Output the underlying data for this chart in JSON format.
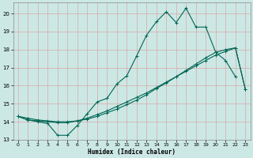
{
  "xlabel": "Humidex (Indice chaleur)",
  "bg_color": "#cce8e4",
  "grid_color": "#d8a8a8",
  "line_color": "#006655",
  "xlim": [
    -0.5,
    23.5
  ],
  "ylim": [
    13,
    20.6
  ],
  "yticks": [
    13,
    14,
    15,
    16,
    17,
    18,
    19,
    20
  ],
  "xticks": [
    0,
    1,
    2,
    3,
    4,
    5,
    6,
    7,
    8,
    9,
    10,
    11,
    12,
    13,
    14,
    15,
    16,
    17,
    18,
    19,
    20,
    21,
    22,
    23
  ],
  "line1_x": [
    0,
    1,
    2,
    3,
    4,
    5,
    6,
    7,
    8,
    9,
    10,
    11,
    12,
    13,
    14,
    15,
    16,
    17,
    18,
    19,
    20,
    21,
    22
  ],
  "line1_y": [
    14.3,
    14.1,
    14.0,
    13.9,
    13.25,
    13.25,
    13.8,
    14.45,
    15.1,
    15.3,
    16.1,
    16.55,
    17.65,
    18.8,
    19.55,
    20.1,
    19.5,
    20.3,
    19.25,
    19.25,
    17.85,
    17.4,
    16.5
  ],
  "line2_x": [
    0,
    1,
    2,
    3,
    4,
    5,
    6,
    7,
    8,
    9,
    10,
    11,
    12,
    13,
    14,
    15,
    16,
    17,
    18,
    19,
    20,
    21,
    22,
    23
  ],
  "line2_y": [
    14.3,
    14.1,
    14.05,
    14.0,
    13.95,
    13.95,
    14.05,
    14.2,
    14.4,
    14.6,
    14.85,
    15.1,
    15.35,
    15.6,
    15.9,
    16.2,
    16.5,
    16.8,
    17.1,
    17.4,
    17.7,
    17.9,
    18.1,
    15.8
  ],
  "line3_x": [
    0,
    1,
    2,
    3,
    4,
    5,
    6,
    7,
    8,
    9,
    10,
    11,
    12,
    13,
    14,
    15,
    16,
    17,
    18,
    19,
    20,
    21,
    22,
    23
  ],
  "line3_y": [
    14.3,
    14.2,
    14.1,
    14.05,
    14.0,
    14.0,
    14.05,
    14.15,
    14.3,
    14.5,
    14.7,
    14.95,
    15.2,
    15.5,
    15.85,
    16.15,
    16.5,
    16.85,
    17.2,
    17.55,
    17.85,
    18.0,
    18.1,
    15.8
  ]
}
